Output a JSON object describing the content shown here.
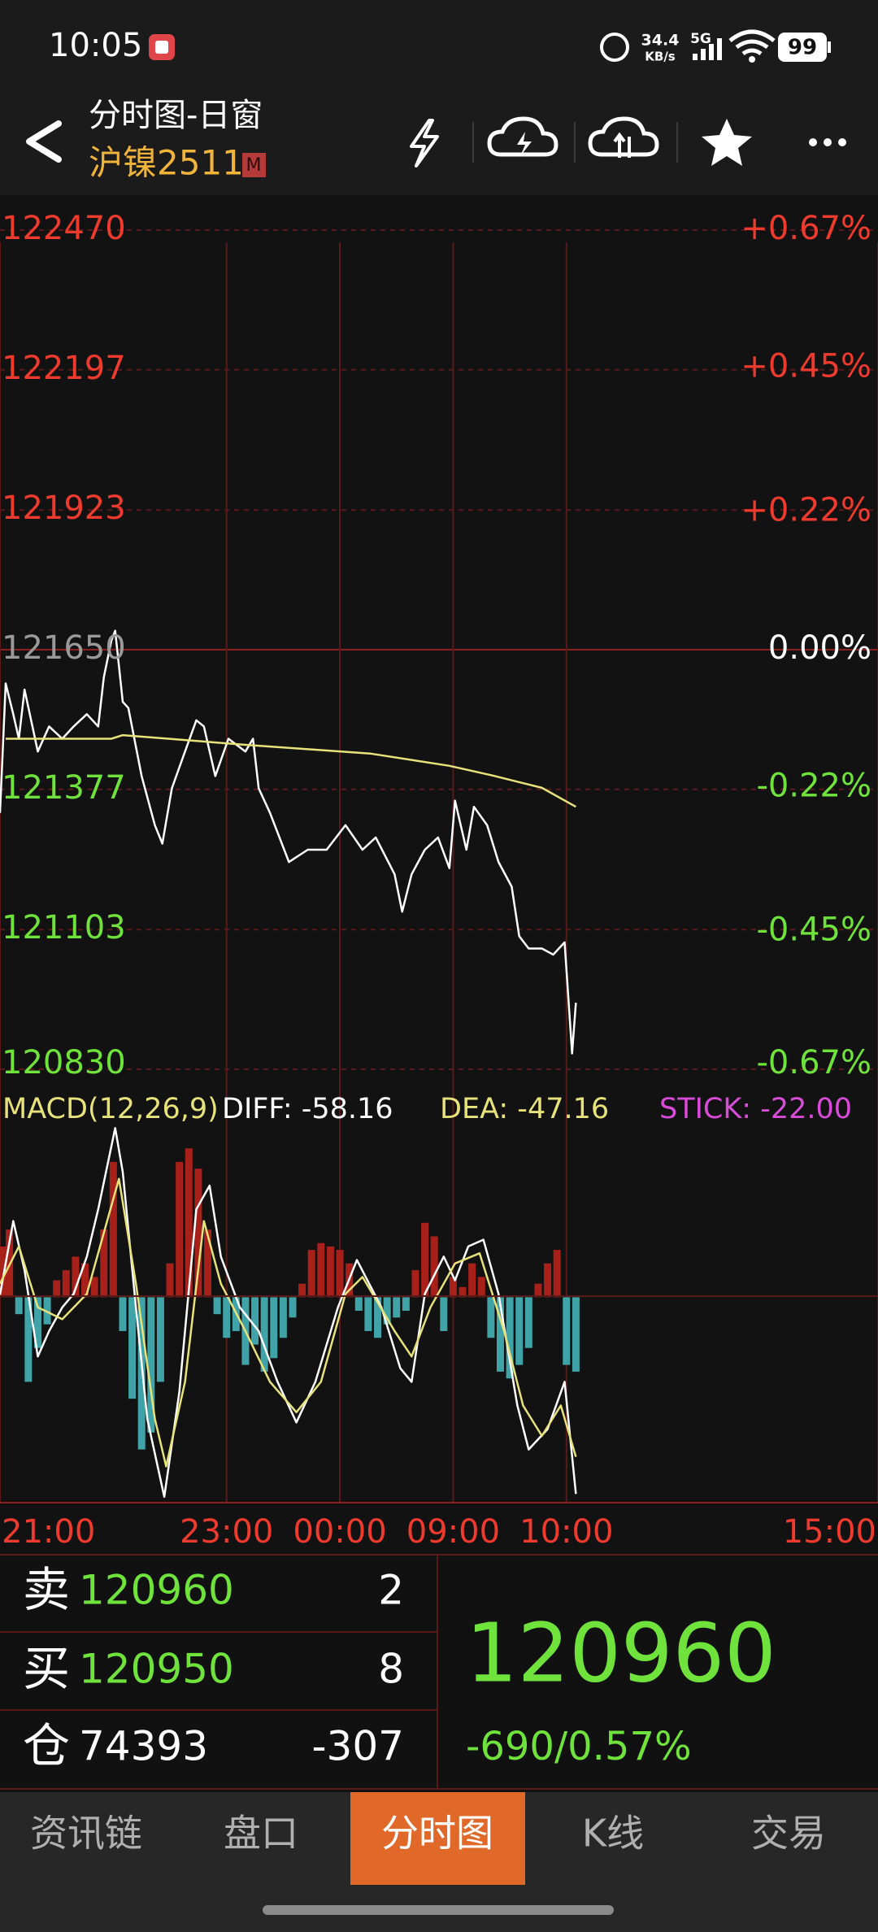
{
  "status_bar": {
    "time": "10:05",
    "net_speed": "34.4",
    "net_unit": "KB/s",
    "signal": "5G",
    "battery": "99"
  },
  "header": {
    "title": "分时图-日窗",
    "symbol": "沪镍2511",
    "badge": "M"
  },
  "chart_data": [
    {
      "type": "line",
      "xlim": [
        0,
        465
      ],
      "xticks": [
        {
          "value": 0,
          "label": "21:00"
        },
        {
          "value": 120,
          "label": "23:00"
        },
        {
          "value": 180,
          "label": "00:00"
        },
        {
          "value": 240,
          "label": "09:00"
        },
        {
          "value": 300,
          "label": "10:00"
        },
        {
          "value": 465,
          "label": "15:00"
        }
      ],
      "ylim": [
        120830,
        122470
      ],
      "yticks": [
        122470,
        122197,
        121923,
        121650,
        121377,
        121103,
        120830
      ],
      "y2lim": [
        -0.67,
        0.67
      ],
      "y2ticks": [
        {
          "value": 0.67,
          "label": "+0.67%"
        },
        {
          "value": 0.45,
          "label": "+0.45%"
        },
        {
          "value": 0.22,
          "label": "+0.22%"
        },
        {
          "value": 0,
          "label": "0.00%"
        },
        {
          "value": -0.22,
          "label": "-0.22%"
        },
        {
          "value": -0.45,
          "label": "-0.45%"
        },
        {
          "value": -0.67,
          "label": "-0.67%"
        }
      ],
      "up_color": "#ef3a2e",
      "down_color": "#6fe33b",
      "flat_color": "#9a9a9a",
      "grid": true,
      "series": [
        {
          "color": "#ffffff",
          "x": [
            0,
            3,
            7,
            10,
            13,
            20,
            26,
            33,
            39,
            46,
            52,
            55,
            59,
            61,
            65,
            68,
            75,
            82,
            86,
            91,
            98,
            104,
            108,
            114,
            121,
            130,
            134,
            137,
            143,
            153,
            163,
            173,
            183,
            192,
            199,
            209,
            213,
            218,
            225,
            232,
            238,
            241,
            247,
            251,
            258,
            264,
            271,
            275,
            280,
            287,
            293,
            299,
            301,
            303,
            305
          ],
          "values": [
            121331,
            121584,
            121524,
            121476,
            121572,
            121451,
            121500,
            121476,
            121500,
            121524,
            121500,
            121596,
            121668,
            121687,
            121548,
            121536,
            121403,
            121307,
            121271,
            121379,
            121451,
            121512,
            121500,
            121403,
            121476,
            121451,
            121476,
            121379,
            121331,
            121235,
            121259,
            121259,
            121307,
            121259,
            121283,
            121211,
            121138,
            121211,
            121259,
            121283,
            121223,
            121355,
            121259,
            121343,
            121307,
            121235,
            121187,
            121090,
            121066,
            121066,
            121054,
            121078,
            120970,
            120861,
            120960
          ]
        },
        {
          "color": "#e8e27a",
          "x": [
            3,
            59,
            65,
            130,
            196,
            238,
            261,
            287,
            305
          ],
          "values": [
            121476,
            121476,
            121483,
            121464,
            121447,
            121423,
            121404,
            121380,
            121343
          ]
        }
      ]
    },
    {
      "type": "macd",
      "xlim": [
        0,
        465
      ],
      "ylim": [
        -60,
        52
      ],
      "annotations": [
        "MACD(12,26,9)",
        "DIFF: -58.16",
        "DEA: -47.16",
        "STICK: -22.00"
      ],
      "annotation_colors": [
        "#e8e27a",
        "#ffffff",
        "#e8e27a",
        "#d94bd9"
      ],
      "up_color": "#a8201a",
      "down_color": "#3fa3a8",
      "bars": {
        "x": [
          0,
          5,
          10,
          15,
          20,
          25,
          30,
          35,
          40,
          45,
          50,
          55,
          60,
          65,
          70,
          75,
          80,
          85,
          90,
          95,
          100,
          105,
          110,
          115,
          120,
          125,
          130,
          135,
          140,
          145,
          150,
          155,
          160,
          165,
          170,
          175,
          180,
          185,
          190,
          195,
          200,
          205,
          210,
          215,
          220,
          225,
          230,
          235,
          240,
          245,
          250,
          255,
          260,
          265,
          270,
          275,
          280,
          285,
          290,
          295,
          300,
          305
        ],
        "values": [
          15,
          20,
          -5,
          -25,
          -15,
          -8,
          5,
          8,
          12,
          10,
          6,
          20,
          40,
          -10,
          -30,
          -45,
          -40,
          -25,
          10,
          40,
          44,
          38,
          20,
          -5,
          -12,
          -10,
          -20,
          -14,
          -22,
          -18,
          -12,
          -6,
          4,
          14,
          16,
          15,
          14,
          10,
          -4,
          -10,
          -12,
          -8,
          -6,
          -4,
          8,
          22,
          18,
          -10,
          6,
          3,
          10,
          6,
          -12,
          -22,
          -24,
          -20,
          -15,
          4,
          10,
          14,
          -20,
          -22
        ]
      },
      "series": [
        {
          "color": "#ffffff",
          "x": [
            0,
            7,
            13,
            20,
            26,
            33,
            39,
            46,
            52,
            61,
            65,
            72,
            78,
            87,
            95,
            104,
            111,
            117,
            127,
            137,
            147,
            157,
            167,
            179,
            189,
            202,
            212,
            218,
            225,
            235,
            241,
            248,
            256,
            264,
            274,
            280,
            290,
            299,
            305
          ],
          "values": [
            0.7,
            22.5,
            8,
            -17.5,
            -10,
            -3,
            1,
            12,
            26,
            50,
            37,
            -3,
            -36,
            -59,
            -28,
            26,
            33,
            12,
            -3,
            -10,
            -25,
            -37,
            -25,
            -3,
            11,
            -3,
            -21,
            -25,
            1,
            12,
            5,
            15,
            17,
            1,
            -32,
            -45,
            -39,
            -25,
            -58.16
          ]
        },
        {
          "color": "#e8e27a",
          "x": [
            0,
            10,
            20,
            33,
            46,
            55,
            63,
            72,
            82,
            88,
            98,
            108,
            117,
            130,
            143,
            157,
            170,
            183,
            192,
            209,
            218,
            228,
            241,
            254,
            267,
            277,
            287,
            297,
            305
          ],
          "values": [
            4,
            15,
            -3,
            -6.5,
            1,
            19,
            35,
            4,
            -36,
            -50,
            -25,
            22.5,
            4,
            -10,
            -25,
            -34,
            -25,
            1,
            6,
            -10,
            -17.5,
            -3,
            10,
            13,
            -10,
            -32,
            -41,
            -32,
            -47.16
          ]
        }
      ]
    }
  ],
  "quote": {
    "rows": [
      {
        "side": "卖",
        "price": 120960,
        "qty": 2
      },
      {
        "side": "买",
        "price": 120950,
        "qty": 8
      },
      {
        "side": "仓",
        "price": 74393,
        "qty": -307
      }
    ],
    "last": 120960,
    "change": "-690/0.57%"
  },
  "tabs": [
    "资讯链",
    "盘口",
    "分时图",
    "K线",
    "交易"
  ],
  "active_tab": 2
}
